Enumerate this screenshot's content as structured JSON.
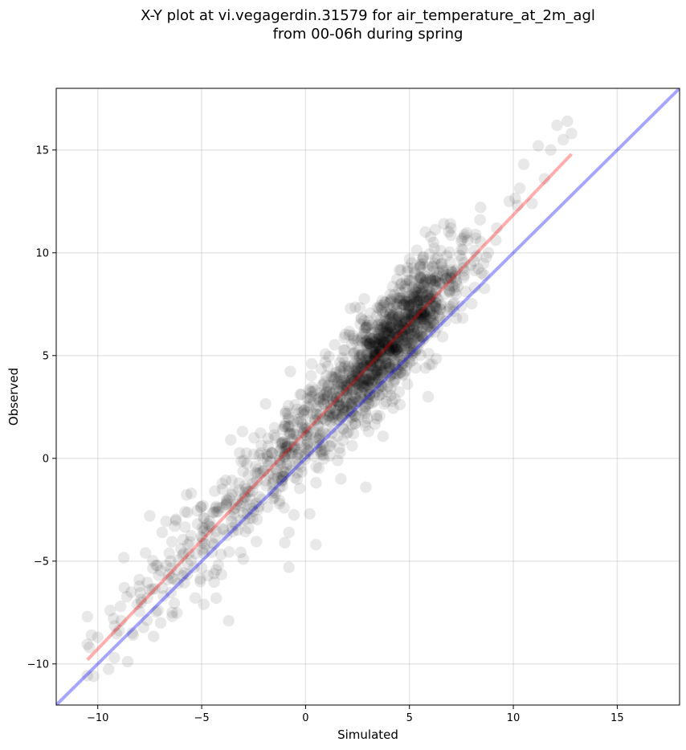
{
  "chart_data": {
    "type": "scatter",
    "title": "X-Y plot at vi.vegagerdin.31579 for air_temperature_at_2m_agl",
    "subtitle": "from 00-06h during spring",
    "xlabel": "Simulated",
    "ylabel": "Observed",
    "xlim": [
      -12,
      18
    ],
    "ylim": [
      -12,
      18
    ],
    "xticks": [
      -10,
      -5,
      0,
      5,
      10,
      15
    ],
    "yticks": [
      -10,
      -5,
      0,
      5,
      10,
      15
    ],
    "xtick_labels": [
      "−10",
      "−5",
      "0",
      "5",
      "10",
      "15"
    ],
    "ytick_labels": [
      "−10",
      "−5",
      "0",
      "5",
      "10",
      "15"
    ],
    "grid": true,
    "point_color": "#000000",
    "point_alpha": 0.09,
    "reference_line": {
      "color": "#0000ff",
      "points": [
        [
          -12,
          -12
        ],
        [
          18,
          18
        ]
      ]
    },
    "fit_line": {
      "color": "#ff0000",
      "points": [
        [
          -10.5,
          -9.8
        ],
        [
          12.8,
          14.8
        ]
      ]
    },
    "point_cloud": {
      "description_of_distribution": "dense cluster along fit line",
      "x_range": [
        -10.5,
        12.8
      ],
      "y_range": [
        -10.6,
        16.4
      ],
      "dense_center": [
        4.5,
        6.5
      ]
    },
    "series": [
      {
        "values": [
          [
            -10.3,
            -8.6
          ],
          [
            -10.0,
            -8.7
          ],
          [
            -10.4,
            -9.2
          ],
          [
            -10.2,
            -10.6
          ],
          [
            -10.5,
            -7.7
          ],
          [
            -9.2,
            -9.7
          ],
          [
            -9.4,
            -7.4
          ],
          [
            -8.9,
            -7.2
          ],
          [
            -8.3,
            -8.6
          ],
          [
            -8.1,
            -7.1
          ],
          [
            -8.0,
            -5.9
          ],
          [
            -7.7,
            -4.6
          ],
          [
            -7.2,
            -5.2
          ],
          [
            -7.5,
            -2.8
          ],
          [
            -6.9,
            -3.6
          ],
          [
            -6.5,
            -5.0
          ],
          [
            -6.3,
            -3.3
          ],
          [
            -6.0,
            -4.4
          ],
          [
            -5.8,
            -2.6
          ],
          [
            -5.5,
            -1.7
          ],
          [
            -5.2,
            -3.2
          ],
          [
            -4.9,
            -7.1
          ],
          [
            -4.7,
            -5.7
          ],
          [
            -4.5,
            -4.1
          ],
          [
            -4.3,
            -6.8
          ],
          [
            -4.0,
            -1.5
          ],
          [
            -3.7,
            -7.9
          ],
          [
            -3.6,
            0.9
          ],
          [
            -3.2,
            -1.2
          ],
          [
            -3.0,
            -4.9
          ],
          [
            -2.8,
            -2.7
          ],
          [
            -2.5,
            0.2
          ],
          [
            -2.1,
            -2.0
          ],
          [
            -1.8,
            0.6
          ],
          [
            -1.5,
            -1.9
          ],
          [
            -1.1,
            1.4
          ],
          [
            -1.0,
            -4.1
          ],
          [
            -0.8,
            -3.6
          ],
          [
            -0.8,
            -5.3
          ],
          [
            -0.5,
            2.6
          ],
          [
            -0.2,
            3.1
          ],
          [
            0.0,
            0.5
          ],
          [
            0.2,
            -2.7
          ],
          [
            0.3,
            4.6
          ],
          [
            0.5,
            -4.2
          ],
          [
            0.7,
            1.1
          ],
          [
            1.0,
            3.2
          ],
          [
            1.3,
            2.0
          ],
          [
            1.5,
            4.2
          ],
          [
            1.7,
            -1.0
          ],
          [
            2.0,
            3.5
          ],
          [
            2.1,
            6.0
          ],
          [
            2.3,
            1.2
          ],
          [
            2.6,
            4.9
          ],
          [
            2.9,
            2.3
          ],
          [
            2.9,
            -1.4
          ],
          [
            3.2,
            6.5
          ],
          [
            3.4,
            3.7
          ],
          [
            3.6,
            5.2
          ],
          [
            3.8,
            7.6
          ],
          [
            4.0,
            4.6
          ],
          [
            4.1,
            6.2
          ],
          [
            4.3,
            2.9
          ],
          [
            4.5,
            8.2
          ],
          [
            4.6,
            5.5
          ],
          [
            4.8,
            7.0
          ],
          [
            5.0,
            6.4
          ],
          [
            5.1,
            9.5
          ],
          [
            5.3,
            4.4
          ],
          [
            5.5,
            7.7
          ],
          [
            5.7,
            6.9
          ],
          [
            5.9,
            3.0
          ],
          [
            6.0,
            8.8
          ],
          [
            6.3,
            7.3
          ],
          [
            6.5,
            10.1
          ],
          [
            6.7,
            8.0
          ],
          [
            7.0,
            11.2
          ],
          [
            7.2,
            9.1
          ],
          [
            7.5,
            7.4
          ],
          [
            7.8,
            10.6
          ],
          [
            8.1,
            9.6
          ],
          [
            8.4,
            11.6
          ],
          [
            8.8,
            10.0
          ],
          [
            9.2,
            11.2
          ],
          [
            9.8,
            12.5
          ],
          [
            10.2,
            12.3
          ],
          [
            10.5,
            14.3
          ],
          [
            10.9,
            12.4
          ],
          [
            11.2,
            15.2
          ],
          [
            11.5,
            13.6
          ],
          [
            11.8,
            15.0
          ],
          [
            12.1,
            16.2
          ],
          [
            12.4,
            15.5
          ],
          [
            12.6,
            16.4
          ],
          [
            12.8,
            15.8
          ]
        ]
      }
    ]
  }
}
